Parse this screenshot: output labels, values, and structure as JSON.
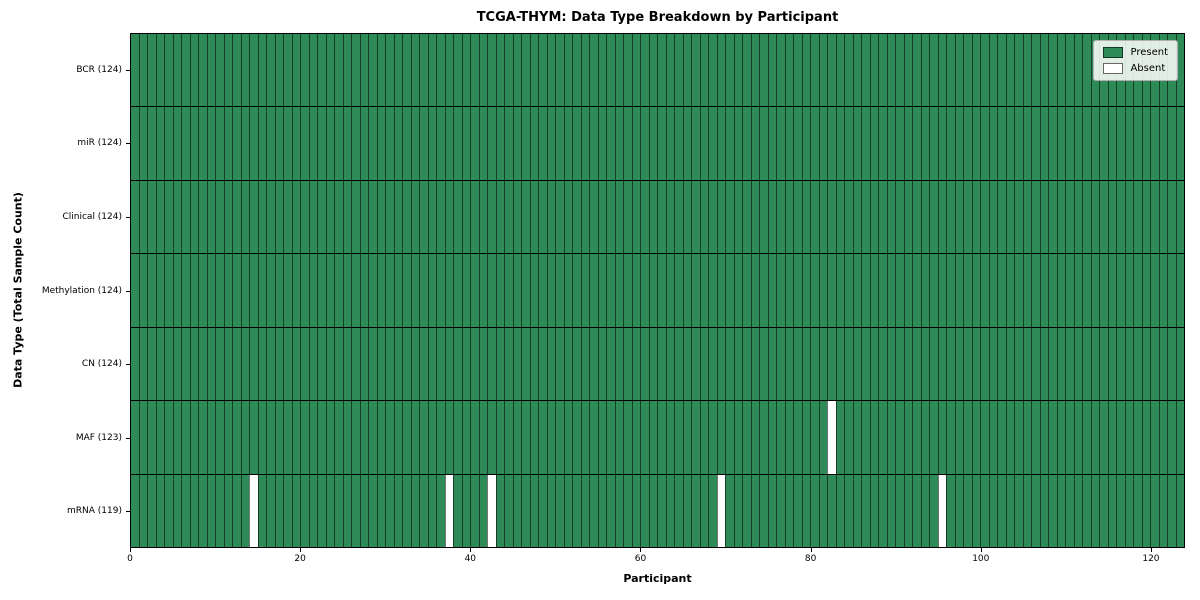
{
  "title": "TCGA-THYM: Data Type Breakdown by Participant",
  "xlabel": "Participant",
  "ylabel": "Data Type (Total Sample Count)",
  "legend": {
    "present_label": "Present",
    "absent_label": "Absent"
  },
  "colors": {
    "present": "#2e8b57",
    "absent": "#ffffff",
    "cell_edge": "rgba(0,0,0,0.55)"
  },
  "chart_data": {
    "type": "heatmap",
    "title": "TCGA-THYM: Data Type Breakdown by Participant",
    "xlabel": "Participant",
    "ylabel": "Data Type (Total Sample Count)",
    "x_range": [
      0,
      124
    ],
    "x_ticks": [
      0,
      20,
      40,
      60,
      80,
      100,
      120
    ],
    "n_participants": 124,
    "legend_position": "upper right",
    "rows": [
      {
        "label": "BCR (124)",
        "total": 124,
        "absent_participants": []
      },
      {
        "label": "miR (124)",
        "total": 124,
        "absent_participants": []
      },
      {
        "label": "Clinical (124)",
        "total": 124,
        "absent_participants": []
      },
      {
        "label": "Methylation (124)",
        "total": 124,
        "absent_participants": []
      },
      {
        "label": "CN (124)",
        "total": 124,
        "absent_participants": []
      },
      {
        "label": "MAF (123)",
        "total": 123,
        "absent_participants": [
          82
        ]
      },
      {
        "label": "mRNA (119)",
        "total": 119,
        "absent_participants": [
          14,
          37,
          42,
          69,
          95
        ]
      }
    ]
  }
}
